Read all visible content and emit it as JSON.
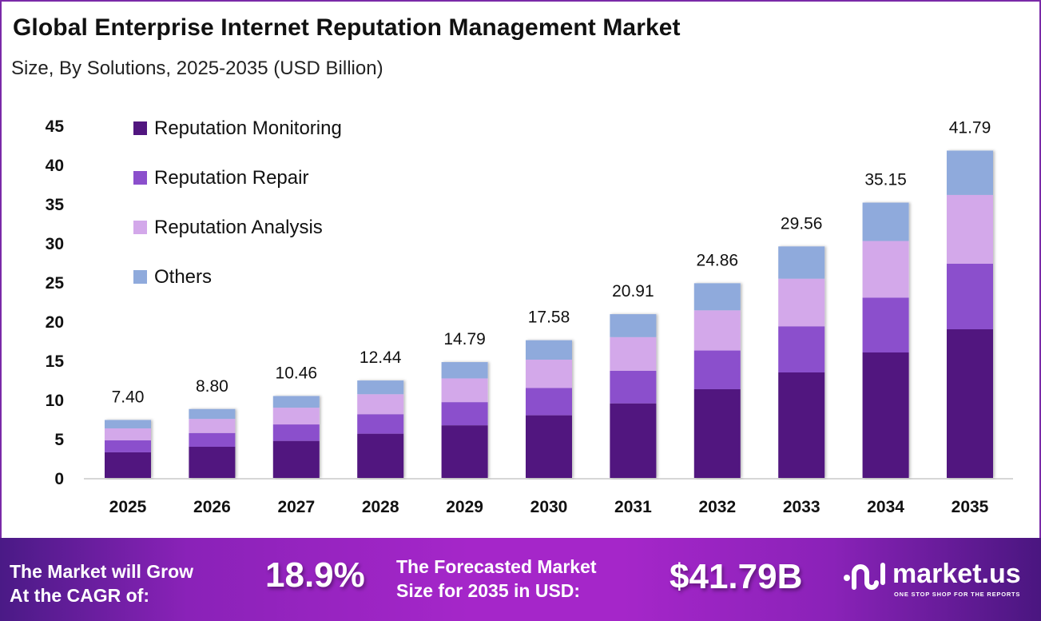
{
  "header": {
    "title": "Global Enterprise Internet Reputation Management Market",
    "subtitle": "Size, By Solutions, 2025-2035 (USD Billion)"
  },
  "chart_data": {
    "type": "bar",
    "stacked": true,
    "title": "Global Enterprise Internet Reputation Management Market",
    "subtitle": "Size, By Solutions, 2025-2035 (USD Billion)",
    "xlabel": "",
    "ylabel": "",
    "ylim": [
      0,
      45
    ],
    "yticks": [
      0,
      5,
      10,
      15,
      20,
      25,
      30,
      35,
      40,
      45
    ],
    "grid": false,
    "legend_position": "top-left",
    "categories": [
      "2025",
      "2026",
      "2027",
      "2028",
      "2029",
      "2030",
      "2031",
      "2032",
      "2033",
      "2034",
      "2035"
    ],
    "totals": [
      7.4,
      8.8,
      10.46,
      12.44,
      14.79,
      17.58,
      20.91,
      24.86,
      29.56,
      35.15,
      41.79
    ],
    "total_labels": [
      "7.40",
      "8.80",
      "10.46",
      "12.44",
      "14.79",
      "17.58",
      "20.91",
      "24.86",
      "29.56",
      "35.15",
      "41.79"
    ],
    "series": [
      {
        "name": "Reputation Monitoring",
        "color": "#51167f",
        "values": [
          3.27,
          3.98,
          4.73,
          5.65,
          6.72,
          8.0,
          9.52,
          11.33,
          13.47,
          16.02,
          18.98
        ]
      },
      {
        "name": "Reputation Repair",
        "color": "#8b4fcc",
        "values": [
          1.53,
          1.76,
          2.1,
          2.49,
          2.96,
          3.48,
          4.16,
          4.94,
          5.89,
          7.0,
          8.37
        ]
      },
      {
        "name": "Reputation Analysis",
        "color": "#d3a8ea",
        "values": [
          1.53,
          1.8,
          2.14,
          2.55,
          3.03,
          3.62,
          4.3,
          5.13,
          6.08,
          7.23,
          8.78
        ]
      },
      {
        "name": "Others",
        "color": "#8faadc",
        "values": [
          1.07,
          1.26,
          1.49,
          1.75,
          2.08,
          2.48,
          2.93,
          3.46,
          4.12,
          4.9,
          5.66
        ]
      }
    ]
  },
  "footer": {
    "cagr_text_line1": "The Market will Grow",
    "cagr_text_line2": "At the CAGR of:",
    "cagr_value": "18.9%",
    "forecast_text_line1": "The Forecasted Market",
    "forecast_text_line2": "Size for 2035 in USD:",
    "forecast_value": "$41.79B",
    "brand_name": "market.us",
    "brand_tagline": "ONE STOP SHOP FOR THE REPORTS"
  }
}
